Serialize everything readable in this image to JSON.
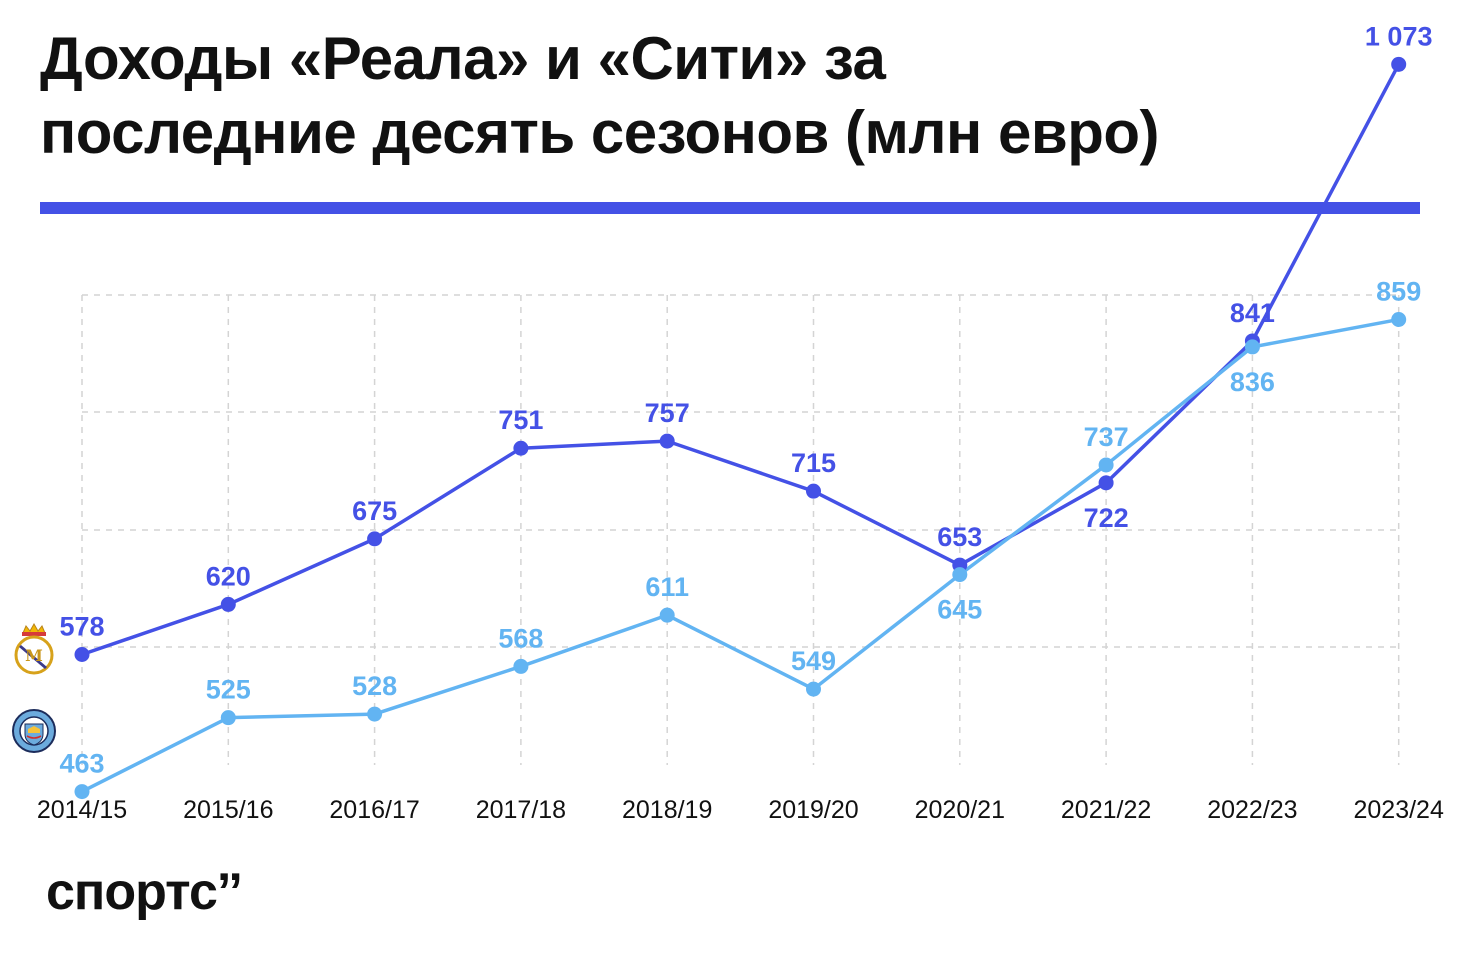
{
  "header": {
    "title_line1": "Доходы «Реала» и «Сити» за",
    "title_line2": "последние десять сезонов (млн евро)"
  },
  "footer": {
    "brand": "спортс’’"
  },
  "colors": {
    "real": "#4451e6",
    "city": "#62b4f2",
    "grid": "#d4d4d4",
    "rule": "#4451e6"
  },
  "chart_data": {
    "type": "line",
    "title": "Доходы «Реала» и «Сити» за последние десять сезонов (млн евро)",
    "xlabel": "",
    "ylabel": "",
    "categories": [
      "2014/15",
      "2015/16",
      "2016/17",
      "2017/18",
      "2018/19",
      "2019/20",
      "2020/21",
      "2021/22",
      "2022/23",
      "2023/24"
    ],
    "ylim": [
      400,
      1100
    ],
    "grid": true,
    "series": [
      {
        "icon": "real-madrid-crest-icon",
        "color": "#4451e6",
        "values": [
          578,
          620,
          675,
          751,
          757,
          715,
          653,
          722,
          841,
          1073
        ],
        "value_labels": [
          "578",
          "620",
          "675",
          "751",
          "757",
          "715",
          "653",
          "722",
          "841",
          "1 073"
        ]
      },
      {
        "icon": "manchester-city-crest-icon",
        "color": "#62b4f2",
        "values": [
          463,
          525,
          528,
          568,
          611,
          549,
          645,
          737,
          836,
          859
        ],
        "value_labels": [
          "463",
          "525",
          "528",
          "568",
          "611",
          "549",
          "645",
          "737",
          "836",
          "859"
        ]
      }
    ]
  }
}
